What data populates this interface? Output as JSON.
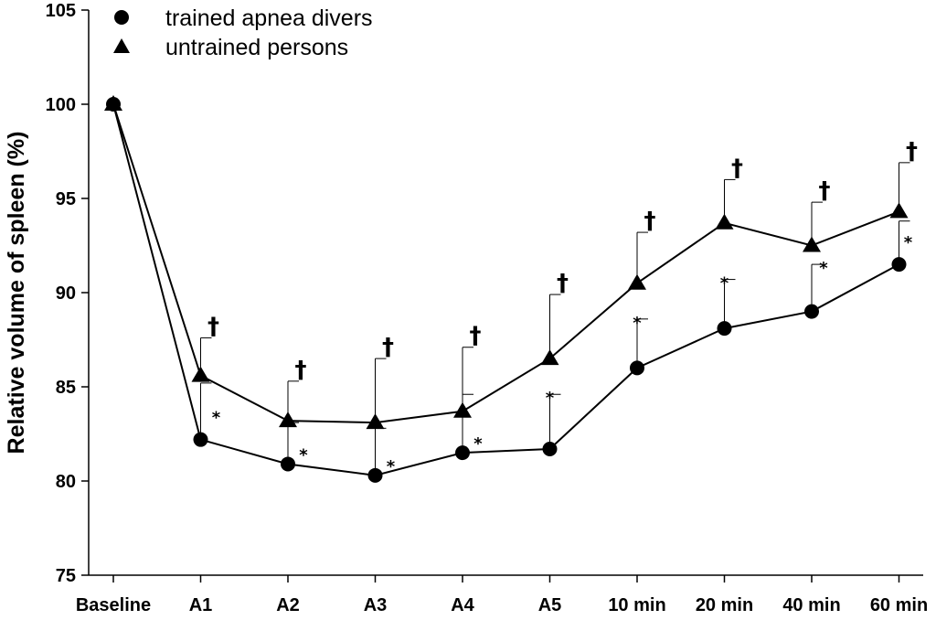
{
  "chart_data": {
    "type": "line",
    "title": "",
    "xlabel": "",
    "ylabel": "Relative volume of spleen (%)",
    "categories": [
      "Baseline",
      "A1",
      "A2",
      "A3",
      "A4",
      "A5",
      "10 min",
      "20 min",
      "40 min",
      "60 min"
    ],
    "ylim": [
      75,
      105
    ],
    "yticks": [
      75,
      80,
      85,
      90,
      95,
      100,
      105
    ],
    "grid": false,
    "legend_position": "top-left",
    "series": [
      {
        "name": "trained apnea divers",
        "marker": "circle",
        "values": [
          100,
          82.2,
          80.9,
          80.3,
          81.5,
          81.7,
          86.0,
          88.1,
          89.0,
          91.5
        ],
        "error_upper": [
          null,
          85.2,
          83.1,
          82.8,
          84.6,
          84.6,
          88.6,
          90.7,
          91.5,
          93.8
        ],
        "annotation": "*",
        "annotated_points": [
          1,
          2,
          3,
          4,
          5,
          6,
          7,
          8,
          9
        ]
      },
      {
        "name": "untrained persons",
        "marker": "triangle",
        "values": [
          100,
          85.6,
          83.2,
          83.1,
          83.7,
          86.5,
          90.5,
          93.7,
          92.5,
          94.3
        ],
        "error_upper": [
          null,
          87.6,
          85.3,
          86.5,
          87.1,
          89.9,
          93.2,
          96.0,
          94.8,
          96.9
        ],
        "annotation": "†",
        "annotated_points": [
          1,
          2,
          3,
          4,
          5,
          6,
          7,
          8,
          9
        ]
      }
    ]
  }
}
